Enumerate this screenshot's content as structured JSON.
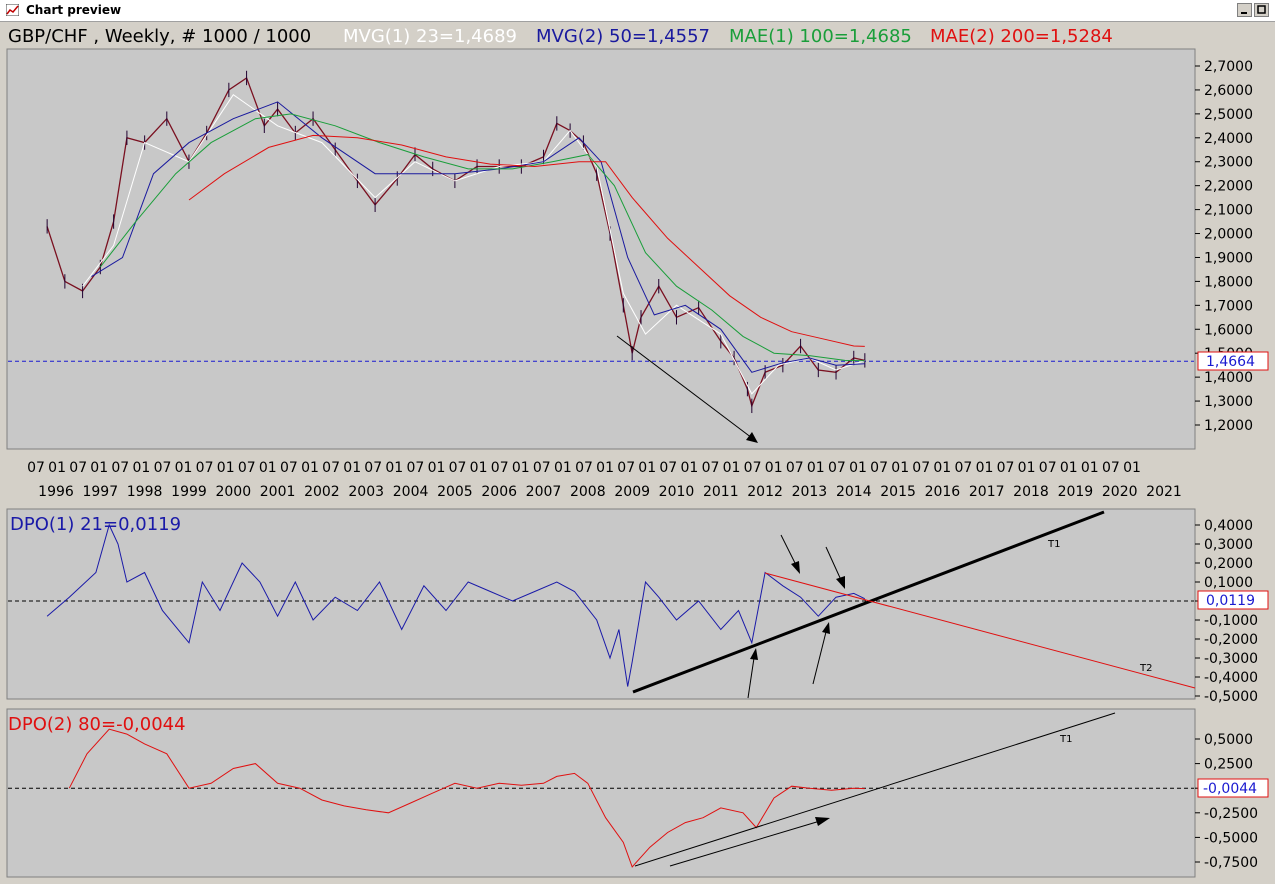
{
  "window": {
    "title": "Chart preview"
  },
  "colors": {
    "panel_bg": "#c8c8c8",
    "price": "#7a1020",
    "mvg1": "#ffffff",
    "mvg2": "#1a1a9e",
    "mae1": "#1a9e3a",
    "mae2": "#e01010",
    "dpo1": "#1a1aa8",
    "dpo2": "#e01010",
    "hline": "#1a1ad0"
  },
  "price_panel": {
    "header_symbol": "GBP/CHF , Weekly, # 1000 / 1000",
    "header_mvg1": "MVG(1) 23=1,4689",
    "header_mvg2": "MVG(2) 50=1,4557",
    "header_mae1": "MAE(1) 100=1,4685",
    "header_mae2": "MAE(2) 200=1,5284",
    "current_value_label": "1,4664"
  },
  "dpo1_panel": {
    "header": "DPO(1) 21=0,0119",
    "current_value_label": "0,0119",
    "trend_labels": [
      "T1",
      "T2"
    ]
  },
  "dpo2_panel": {
    "header": "DPO(2) 80=-0,0044",
    "current_value_label": "-0,0044",
    "trend_labels": [
      "T1"
    ]
  },
  "month_labels": [
    "07",
    "01",
    "07",
    "01",
    "07",
    "01",
    "07",
    "01",
    "07",
    "01",
    "07",
    "01",
    "07",
    "01",
    "07",
    "01",
    "07",
    "01",
    "07",
    "01",
    "07",
    "01",
    "07",
    "01",
    "07",
    "01",
    "07",
    "01",
    "07",
    "01",
    "07",
    "01",
    "07",
    "01",
    "07",
    "01",
    "07",
    "01",
    "07",
    "01",
    "07",
    "01",
    "07",
    "01",
    "07",
    "01",
    "07",
    "01",
    "07",
    "01",
    "01",
    "07",
    "01"
  ],
  "year_labels": [
    "1996",
    "1997",
    "1998",
    "1999",
    "2000",
    "2001",
    "2002",
    "2003",
    "2004",
    "2005",
    "2006",
    "2007",
    "2008",
    "2009",
    "2010",
    "2011",
    "2012",
    "2013",
    "2014",
    "2015",
    "2016",
    "2017",
    "2018",
    "2019",
    "2020",
    "2021"
  ],
  "chart_data": [
    {
      "type": "line",
      "title": "GBP/CHF , Weekly, # 1000 / 1000",
      "x_unit": "year",
      "ylim": [
        1.1,
        2.75
      ],
      "y_ticks": [
        "1,2000",
        "1,3000",
        "1,4000",
        "1,5000",
        "1,6000",
        "1,7000",
        "1,8000",
        "1,9000",
        "2,0000",
        "2,1000",
        "2,2000",
        "2,3000",
        "2,4000",
        "2,5000",
        "2,6000",
        "2,7000"
      ],
      "horizontal_line": 1.4664,
      "series": [
        {
          "name": "GBP/CHF",
          "x": [
            1995.8,
            1996.2,
            1996.6,
            1997.0,
            1997.3,
            1997.6,
            1998.0,
            1998.5,
            1999.0,
            1999.4,
            1999.9,
            2000.3,
            2000.7,
            2001.0,
            2001.4,
            2001.8,
            2002.3,
            2002.8,
            2003.2,
            2003.7,
            2004.1,
            2004.5,
            2005.0,
            2005.5,
            2006.0,
            2006.5,
            2007.0,
            2007.3,
            2007.6,
            2007.9,
            2008.2,
            2008.5,
            2008.8,
            2009.0,
            2009.2,
            2009.6,
            2010.0,
            2010.5,
            2011.0,
            2011.3,
            2011.6,
            2011.7,
            2012.0,
            2012.4,
            2012.8,
            2013.2,
            2013.6,
            2014.0,
            2014.25
          ],
          "values": [
            2.03,
            1.8,
            1.76,
            1.86,
            2.05,
            2.4,
            2.38,
            2.48,
            2.3,
            2.42,
            2.6,
            2.65,
            2.45,
            2.52,
            2.42,
            2.48,
            2.35,
            2.22,
            2.12,
            2.23,
            2.33,
            2.27,
            2.22,
            2.28,
            2.28,
            2.28,
            2.32,
            2.46,
            2.43,
            2.38,
            2.25,
            2.0,
            1.7,
            1.5,
            1.65,
            1.78,
            1.65,
            1.69,
            1.55,
            1.48,
            1.35,
            1.28,
            1.42,
            1.45,
            1.53,
            1.43,
            1.42,
            1.48,
            1.47
          ]
        },
        {
          "name": "MVG(1) 23",
          "x": [
            1996.6,
            1997.3,
            1998.0,
            1999.0,
            2000.0,
            2001.0,
            2002.0,
            2003.2,
            2004.1,
            2005.0,
            2006.0,
            2007.0,
            2007.6,
            2008.2,
            2008.8,
            2009.3,
            2010.0,
            2011.0,
            2011.7,
            2012.3,
            2013.0,
            2013.6,
            2014.25
          ],
          "values": [
            1.78,
            1.95,
            2.38,
            2.3,
            2.58,
            2.45,
            2.38,
            2.15,
            2.3,
            2.22,
            2.28,
            2.3,
            2.43,
            2.28,
            1.75,
            1.58,
            1.7,
            1.58,
            1.33,
            1.45,
            1.48,
            1.43,
            1.469
          ]
        },
        {
          "name": "MVG(2) 50",
          "x": [
            1996.8,
            1997.5,
            1998.2,
            1999.0,
            2000.0,
            2001.0,
            2002.0,
            2003.2,
            2004.1,
            2005.0,
            2006.0,
            2007.0,
            2007.8,
            2008.3,
            2008.9,
            2009.5,
            2010.2,
            2011.0,
            2011.7,
            2012.4,
            2013.0,
            2013.6,
            2014.25
          ],
          "values": [
            1.82,
            1.9,
            2.25,
            2.38,
            2.48,
            2.55,
            2.4,
            2.25,
            2.25,
            2.25,
            2.27,
            2.3,
            2.4,
            2.3,
            1.9,
            1.66,
            1.7,
            1.6,
            1.42,
            1.46,
            1.48,
            1.45,
            1.4557
          ]
        },
        {
          "name": "MAE(1) 100",
          "x": [
            1997.0,
            1997.8,
            1998.7,
            1999.5,
            2000.5,
            2001.3,
            2002.3,
            2003.3,
            2004.3,
            2005.3,
            2006.3,
            2007.2,
            2008.0,
            2008.6,
            2009.3,
            2010.0,
            2010.8,
            2011.5,
            2012.2,
            2013.0,
            2013.8,
            2014.25
          ],
          "values": [
            1.86,
            2.05,
            2.25,
            2.38,
            2.48,
            2.5,
            2.45,
            2.38,
            2.32,
            2.27,
            2.27,
            2.3,
            2.33,
            2.2,
            1.92,
            1.78,
            1.68,
            1.57,
            1.5,
            1.49,
            1.47,
            1.4685
          ]
        },
        {
          "name": "MAE(2) 200",
          "x": [
            1999.0,
            1999.8,
            2000.8,
            2001.8,
            2002.8,
            2003.8,
            2004.8,
            2005.8,
            2006.8,
            2007.8,
            2008.4,
            2009.0,
            2009.8,
            2010.5,
            2011.2,
            2011.9,
            2012.6,
            2013.3,
            2014.0,
            2014.25
          ],
          "values": [
            2.14,
            2.25,
            2.36,
            2.41,
            2.4,
            2.37,
            2.32,
            2.29,
            2.28,
            2.3,
            2.3,
            2.15,
            1.98,
            1.86,
            1.74,
            1.65,
            1.59,
            1.56,
            1.53,
            1.5284
          ]
        }
      ]
    },
    {
      "type": "line",
      "title": "DPO(1) 21=0,0119",
      "ylim": [
        -0.52,
        0.45
      ],
      "y_ticks": [
        "-0,5000",
        "-0,4000",
        "-0,3000",
        "-0,2000",
        "-0,1000",
        "0,0000",
        "0,1000",
        "0,2000",
        "0,3000",
        "0,4000"
      ],
      "horizontal_line": 0.0,
      "series": [
        {
          "name": "DPO(1) 21",
          "x": [
            1995.8,
            1996.3,
            1996.9,
            1997.2,
            1997.4,
            1997.6,
            1998.0,
            1998.4,
            1999.0,
            1999.3,
            1999.7,
            2000.2,
            2000.6,
            2001.0,
            2001.4,
            2001.8,
            2002.3,
            2002.8,
            2003.3,
            2003.8,
            2004.3,
            2004.8,
            2005.3,
            2005.8,
            2006.3,
            2006.8,
            2007.3,
            2007.7,
            2008.2,
            2008.5,
            2008.7,
            2008.9,
            2009.0,
            2009.3,
            2009.6,
            2010.0,
            2010.5,
            2011.0,
            2011.4,
            2011.7,
            2012.0,
            2012.4,
            2012.8,
            2013.2,
            2013.6,
            2014.0,
            2014.25
          ],
          "values": [
            -0.08,
            0.02,
            0.15,
            0.4,
            0.3,
            0.1,
            0.15,
            -0.05,
            -0.22,
            0.1,
            -0.05,
            0.2,
            0.1,
            -0.08,
            0.1,
            -0.1,
            0.02,
            -0.05,
            0.1,
            -0.15,
            0.08,
            -0.05,
            0.1,
            0.05,
            0.0,
            0.05,
            0.1,
            0.05,
            -0.1,
            -0.3,
            -0.15,
            -0.45,
            -0.32,
            0.1,
            0.02,
            -0.1,
            0.0,
            -0.15,
            -0.05,
            -0.22,
            0.15,
            0.08,
            0.02,
            -0.08,
            0.02,
            0.04,
            0.012
          ]
        }
      ]
    },
    {
      "type": "line",
      "title": "DPO(2) 80=-0,0044",
      "ylim": [
        -0.85,
        0.75
      ],
      "y_ticks": [
        "-0,7500",
        "-0,5000",
        "-0,2500",
        "0,0000",
        "0,2500",
        "0,5000"
      ],
      "horizontal_line": 0.0,
      "series": [
        {
          "name": "DPO(2) 80",
          "x": [
            1996.3,
            1996.7,
            1997.2,
            1997.6,
            1998.0,
            1998.5,
            1999.0,
            1999.5,
            2000.0,
            2000.5,
            2001.0,
            2001.5,
            2002.0,
            2002.5,
            2003.0,
            2003.5,
            2004.0,
            2004.5,
            2005.0,
            2005.5,
            2006.0,
            2006.5,
            2007.0,
            2007.3,
            2007.7,
            2008.0,
            2008.4,
            2008.8,
            2009.0,
            2009.4,
            2009.8,
            2010.2,
            2010.6,
            2011.0,
            2011.5,
            2011.8,
            2012.2,
            2012.6,
            2013.0,
            2013.5,
            2014.0,
            2014.25
          ],
          "values": [
            0.0,
            0.35,
            0.6,
            0.55,
            0.45,
            0.35,
            0.0,
            0.05,
            0.2,
            0.25,
            0.05,
            0.0,
            -0.12,
            -0.18,
            -0.22,
            -0.25,
            -0.15,
            -0.05,
            0.05,
            0.0,
            0.05,
            0.03,
            0.05,
            0.12,
            0.15,
            0.05,
            -0.3,
            -0.55,
            -0.8,
            -0.6,
            -0.45,
            -0.35,
            -0.3,
            -0.2,
            -0.25,
            -0.4,
            -0.1,
            0.02,
            0.0,
            -0.02,
            0.0,
            -0.004
          ]
        }
      ]
    }
  ]
}
